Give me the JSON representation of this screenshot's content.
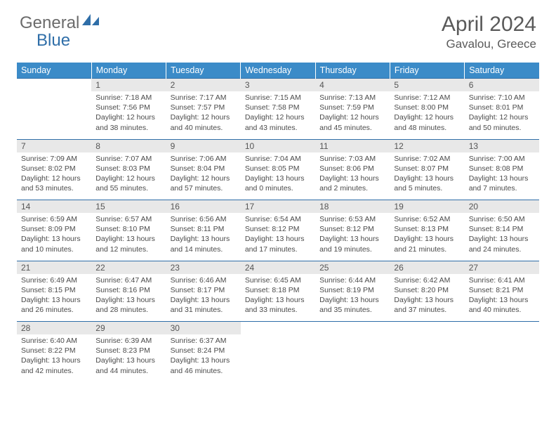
{
  "logo": {
    "part1": "General",
    "part2": "Blue",
    "accent_color": "#2f6ea8"
  },
  "title": "April 2024",
  "location": "Gavalou, Greece",
  "colors": {
    "header_bg": "#3b8bc8",
    "header_text": "#ffffff",
    "daynum_bg": "#e8e8e8",
    "rule": "#2f6ea8",
    "text": "#4a4a4a"
  },
  "weekdays": [
    "Sunday",
    "Monday",
    "Tuesday",
    "Wednesday",
    "Thursday",
    "Friday",
    "Saturday"
  ],
  "weeks": [
    {
      "nums": [
        "",
        "1",
        "2",
        "3",
        "4",
        "5",
        "6"
      ],
      "cells": [
        null,
        {
          "sunrise": "7:18 AM",
          "sunset": "7:56 PM",
          "day_h": 12,
          "day_m": 38
        },
        {
          "sunrise": "7:17 AM",
          "sunset": "7:57 PM",
          "day_h": 12,
          "day_m": 40
        },
        {
          "sunrise": "7:15 AM",
          "sunset": "7:58 PM",
          "day_h": 12,
          "day_m": 43
        },
        {
          "sunrise": "7:13 AM",
          "sunset": "7:59 PM",
          "day_h": 12,
          "day_m": 45
        },
        {
          "sunrise": "7:12 AM",
          "sunset": "8:00 PM",
          "day_h": 12,
          "day_m": 48
        },
        {
          "sunrise": "7:10 AM",
          "sunset": "8:01 PM",
          "day_h": 12,
          "day_m": 50
        }
      ]
    },
    {
      "nums": [
        "7",
        "8",
        "9",
        "10",
        "11",
        "12",
        "13"
      ],
      "cells": [
        {
          "sunrise": "7:09 AM",
          "sunset": "8:02 PM",
          "day_h": 12,
          "day_m": 53
        },
        {
          "sunrise": "7:07 AM",
          "sunset": "8:03 PM",
          "day_h": 12,
          "day_m": 55
        },
        {
          "sunrise": "7:06 AM",
          "sunset": "8:04 PM",
          "day_h": 12,
          "day_m": 57
        },
        {
          "sunrise": "7:04 AM",
          "sunset": "8:05 PM",
          "day_h": 13,
          "day_m": 0
        },
        {
          "sunrise": "7:03 AM",
          "sunset": "8:06 PM",
          "day_h": 13,
          "day_m": 2
        },
        {
          "sunrise": "7:02 AM",
          "sunset": "8:07 PM",
          "day_h": 13,
          "day_m": 5
        },
        {
          "sunrise": "7:00 AM",
          "sunset": "8:08 PM",
          "day_h": 13,
          "day_m": 7
        }
      ]
    },
    {
      "nums": [
        "14",
        "15",
        "16",
        "17",
        "18",
        "19",
        "20"
      ],
      "cells": [
        {
          "sunrise": "6:59 AM",
          "sunset": "8:09 PM",
          "day_h": 13,
          "day_m": 10
        },
        {
          "sunrise": "6:57 AM",
          "sunset": "8:10 PM",
          "day_h": 13,
          "day_m": 12
        },
        {
          "sunrise": "6:56 AM",
          "sunset": "8:11 PM",
          "day_h": 13,
          "day_m": 14
        },
        {
          "sunrise": "6:54 AM",
          "sunset": "8:12 PM",
          "day_h": 13,
          "day_m": 17
        },
        {
          "sunrise": "6:53 AM",
          "sunset": "8:12 PM",
          "day_h": 13,
          "day_m": 19
        },
        {
          "sunrise": "6:52 AM",
          "sunset": "8:13 PM",
          "day_h": 13,
          "day_m": 21
        },
        {
          "sunrise": "6:50 AM",
          "sunset": "8:14 PM",
          "day_h": 13,
          "day_m": 24
        }
      ]
    },
    {
      "nums": [
        "21",
        "22",
        "23",
        "24",
        "25",
        "26",
        "27"
      ],
      "cells": [
        {
          "sunrise": "6:49 AM",
          "sunset": "8:15 PM",
          "day_h": 13,
          "day_m": 26
        },
        {
          "sunrise": "6:47 AM",
          "sunset": "8:16 PM",
          "day_h": 13,
          "day_m": 28
        },
        {
          "sunrise": "6:46 AM",
          "sunset": "8:17 PM",
          "day_h": 13,
          "day_m": 31
        },
        {
          "sunrise": "6:45 AM",
          "sunset": "8:18 PM",
          "day_h": 13,
          "day_m": 33
        },
        {
          "sunrise": "6:44 AM",
          "sunset": "8:19 PM",
          "day_h": 13,
          "day_m": 35
        },
        {
          "sunrise": "6:42 AM",
          "sunset": "8:20 PM",
          "day_h": 13,
          "day_m": 37
        },
        {
          "sunrise": "6:41 AM",
          "sunset": "8:21 PM",
          "day_h": 13,
          "day_m": 40
        }
      ]
    },
    {
      "nums": [
        "28",
        "29",
        "30",
        "",
        "",
        "",
        ""
      ],
      "cells": [
        {
          "sunrise": "6:40 AM",
          "sunset": "8:22 PM",
          "day_h": 13,
          "day_m": 42
        },
        {
          "sunrise": "6:39 AM",
          "sunset": "8:23 PM",
          "day_h": 13,
          "day_m": 44
        },
        {
          "sunrise": "6:37 AM",
          "sunset": "8:24 PM",
          "day_h": 13,
          "day_m": 46
        },
        null,
        null,
        null,
        null
      ]
    }
  ]
}
